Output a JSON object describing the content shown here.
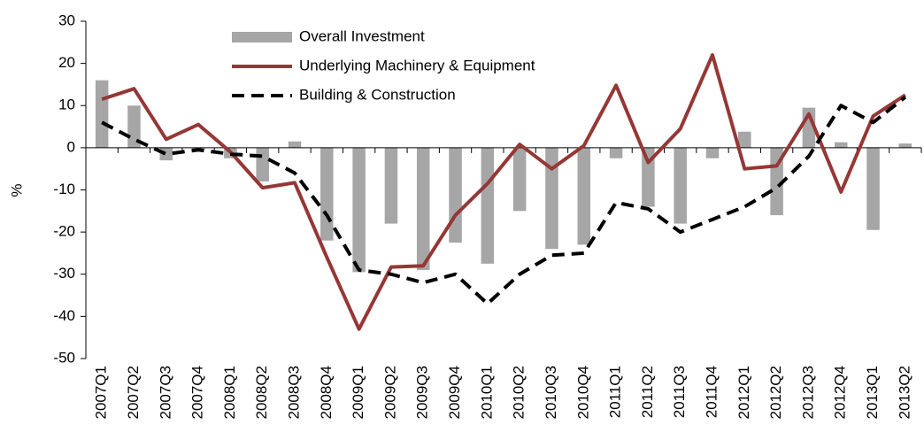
{
  "chart_data": {
    "type": "bar-line",
    "y_label": "%",
    "categories": [
      "2007Q1",
      "2007Q2",
      "2007Q3",
      "2007Q4",
      "2008Q1",
      "2008Q2",
      "2008Q3",
      "2008Q4",
      "2009Q1",
      "2009Q2",
      "2009Q3",
      "2009Q4",
      "2010Q1",
      "2010Q2",
      "2010Q3",
      "2010Q4",
      "2011Q1",
      "2011Q2",
      "2011Q3",
      "2011Q4",
      "2012Q1",
      "2012Q2",
      "2012Q3",
      "2012Q4",
      "2013Q1",
      "2013Q2"
    ],
    "series": [
      {
        "name": "Overall Investment",
        "type": "bar",
        "color": "#a6a6a6",
        "values": [
          16,
          10,
          -3,
          -0.5,
          -2.5,
          -8,
          1.5,
          -22,
          -29.5,
          -18,
          -29,
          -22.5,
          -27.5,
          -15,
          -24,
          -23,
          -2.5,
          -14,
          -18,
          -2.5,
          3.8,
          -16,
          9.5,
          1.3,
          -19.5,
          1
        ]
      },
      {
        "name": "Underlying Machinery & Equipment",
        "type": "line",
        "color": "#953735",
        "dash": false,
        "values": [
          11.5,
          14,
          2,
          5.5,
          -1,
          -9.5,
          -8.3,
          -26,
          -43,
          -28.3,
          -28,
          -16,
          -8.5,
          0.8,
          -5,
          0.5,
          14.8,
          -3.5,
          4.5,
          22,
          -5,
          -4.3,
          8,
          -10.5,
          7.5,
          12.5
        ]
      },
      {
        "name": "Building & Construction",
        "type": "line",
        "color": "#000000",
        "dash": true,
        "values": [
          6,
          2,
          -1.5,
          -0.5,
          -1.5,
          -2,
          -6,
          -16,
          -29,
          -30,
          -32,
          -30,
          -37,
          -30,
          -25.5,
          -25,
          -13,
          -14.5,
          -20,
          -17,
          -14,
          -9.5,
          -2,
          10,
          6,
          12
        ]
      }
    ],
    "ylim": [
      -50,
      30
    ],
    "yticks": [
      -50,
      -40,
      -30,
      -20,
      -10,
      0,
      10,
      20,
      30
    ]
  }
}
